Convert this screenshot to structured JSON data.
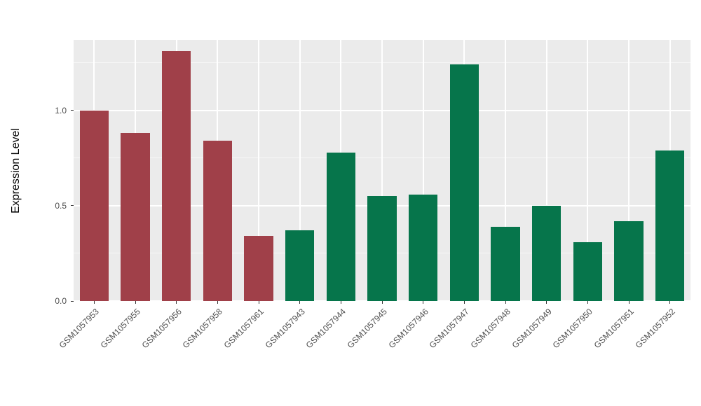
{
  "chart_data": {
    "type": "bar",
    "title": "",
    "xlabel": "",
    "ylabel": "Expression Level",
    "ylim": [
      0,
      1.37
    ],
    "y_tick_values": [
      0,
      0.5,
      1.0
    ],
    "y_tick_labels": [
      "0.0",
      "0.5",
      "1.0"
    ],
    "y_minor_tick_values": [
      0.25,
      0.75,
      1.25
    ],
    "grid": true,
    "legend_position": "none",
    "panel_background": "#EBEBEB",
    "grid_color": "#FFFFFF",
    "group_colors": {
      "red_group": "#A04049",
      "green_group": "#06754B"
    },
    "bars": [
      {
        "label": "GSM1057953",
        "value": 1.0,
        "group": "red_group"
      },
      {
        "label": "GSM1057955",
        "value": 0.88,
        "group": "red_group"
      },
      {
        "label": "GSM1057956",
        "value": 1.31,
        "group": "red_group"
      },
      {
        "label": "GSM1057958",
        "value": 0.84,
        "group": "red_group"
      },
      {
        "label": "GSM1057961",
        "value": 0.34,
        "group": "red_group"
      },
      {
        "label": "GSM1057943",
        "value": 0.37,
        "group": "green_group"
      },
      {
        "label": "GSM1057944",
        "value": 0.78,
        "group": "green_group"
      },
      {
        "label": "GSM1057945",
        "value": 0.55,
        "group": "green_group"
      },
      {
        "label": "GSM1057946",
        "value": 0.56,
        "group": "green_group"
      },
      {
        "label": "GSM1057947",
        "value": 1.24,
        "group": "green_group"
      },
      {
        "label": "GSM1057948",
        "value": 0.39,
        "group": "green_group"
      },
      {
        "label": "GSM1057949",
        "value": 0.5,
        "group": "green_group"
      },
      {
        "label": "GSM1057950",
        "value": 0.31,
        "group": "green_group"
      },
      {
        "label": "GSM1057951",
        "value": 0.42,
        "group": "green_group"
      },
      {
        "label": "GSM1057952",
        "value": 0.79,
        "group": "green_group"
      }
    ]
  }
}
